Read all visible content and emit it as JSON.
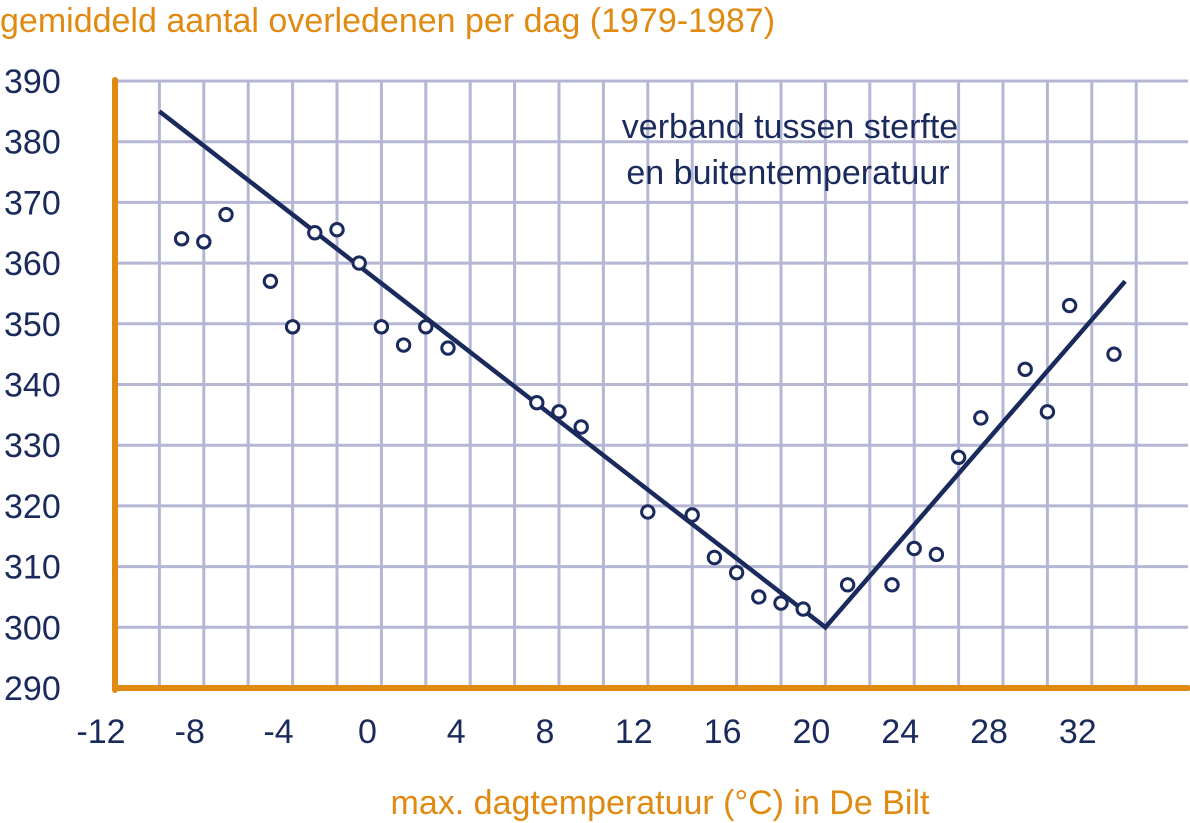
{
  "chart_data": {
    "type": "scatter",
    "title": "gemiddeld aantal overledenen per dag (1979-1987)",
    "xlabel": "max. dagtemperatuur (°C) in De Bilt",
    "ylabel": "",
    "xlim": [
      -12,
      36
    ],
    "ylim": [
      290,
      390
    ],
    "xticks": [
      -12,
      -8,
      -4,
      0,
      4,
      8,
      12,
      16,
      20,
      24,
      28,
      32
    ],
    "yticks": [
      290,
      300,
      310,
      320,
      330,
      340,
      350,
      360,
      370,
      380,
      390
    ],
    "grid": true,
    "annotation": [
      "verband tussen sterfte",
      "en buitentemperatuur"
    ],
    "points": [
      {
        "x": -9,
        "y": 364
      },
      {
        "x": -8,
        "y": 363.5
      },
      {
        "x": -7,
        "y": 368
      },
      {
        "x": -5,
        "y": 357
      },
      {
        "x": -4,
        "y": 349.5
      },
      {
        "x": -3,
        "y": 365
      },
      {
        "x": -2,
        "y": 365.5
      },
      {
        "x": -1,
        "y": 360
      },
      {
        "x": 0,
        "y": 349.5
      },
      {
        "x": 1,
        "y": 346.5
      },
      {
        "x": 2,
        "y": 349.5
      },
      {
        "x": 3,
        "y": 346
      },
      {
        "x": 7,
        "y": 337
      },
      {
        "x": 8,
        "y": 335.5
      },
      {
        "x": 9,
        "y": 333
      },
      {
        "x": 12,
        "y": 319
      },
      {
        "x": 14,
        "y": 318.5
      },
      {
        "x": 15,
        "y": 311.5
      },
      {
        "x": 16,
        "y": 309
      },
      {
        "x": 17,
        "y": 305
      },
      {
        "x": 18,
        "y": 304
      },
      {
        "x": 19,
        "y": 303
      },
      {
        "x": 21,
        "y": 307
      },
      {
        "x": 23,
        "y": 307
      },
      {
        "x": 24,
        "y": 313
      },
      {
        "x": 25,
        "y": 312
      },
      {
        "x": 26,
        "y": 328
      },
      {
        "x": 27,
        "y": 334.5
      },
      {
        "x": 29,
        "y": 342.5
      },
      {
        "x": 30,
        "y": 335.5
      },
      {
        "x": 31,
        "y": 353
      },
      {
        "x": 33,
        "y": 345
      }
    ],
    "trend_line": [
      {
        "x": -10,
        "y": 385
      },
      {
        "x": 20,
        "y": 300
      },
      {
        "x": 33.5,
        "y": 357
      }
    ],
    "colors": {
      "axis": "#e08a12",
      "grid": "#b4b6d4",
      "marks": "#1b2a5c",
      "text_orange": "#e08a12"
    }
  }
}
